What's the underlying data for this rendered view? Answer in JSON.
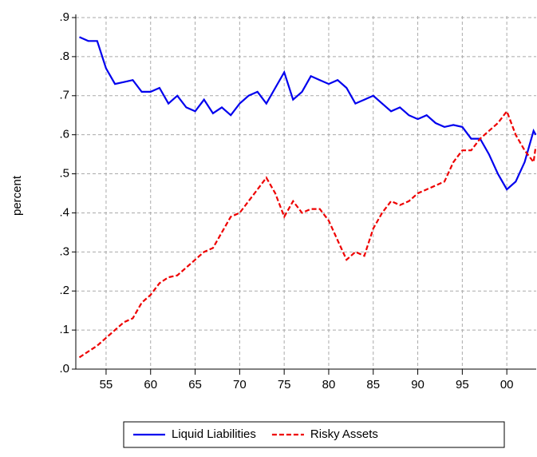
{
  "chart_data": {
    "type": "line",
    "y_label": "percent",
    "xlim": [
      1951.6,
      2003.3
    ],
    "xticks": [
      {
        "value": 1955,
        "label": "55"
      },
      {
        "value": 1960,
        "label": "60"
      },
      {
        "value": 1965,
        "label": "65"
      },
      {
        "value": 1970,
        "label": "70"
      },
      {
        "value": 1975,
        "label": "75"
      },
      {
        "value": 1980,
        "label": "80"
      },
      {
        "value": 1985,
        "label": "85"
      },
      {
        "value": 1990,
        "label": "90"
      },
      {
        "value": 1995,
        "label": "95"
      },
      {
        "value": 2000,
        "label": "00"
      }
    ],
    "ylim": [
      0,
      0.9
    ],
    "yticks": [
      {
        "value": 0,
        "label": ".0"
      },
      {
        "value": 0.1,
        "label": ".1"
      },
      {
        "value": 0.2,
        "label": ".2"
      },
      {
        "value": 0.3,
        "label": ".3"
      },
      {
        "value": 0.4,
        "label": ".4"
      },
      {
        "value": 0.5,
        "label": ".5"
      },
      {
        "value": 0.6,
        "label": ".6"
      },
      {
        "value": 0.7,
        "label": ".7"
      },
      {
        "value": 0.8,
        "label": ".8"
      },
      {
        "value": 0.9,
        "label": ".9"
      }
    ],
    "grid": true,
    "legend": "bottom",
    "x": [
      1952,
      1953,
      1954,
      1955,
      1956,
      1957,
      1958,
      1959,
      1960,
      1961,
      1962,
      1963,
      1964,
      1965,
      1966,
      1967,
      1968,
      1969,
      1970,
      1971,
      1972,
      1973,
      1974,
      1975,
      1976,
      1977,
      1978,
      1979,
      1980,
      1981,
      1982,
      1983,
      1984,
      1985,
      1986,
      1987,
      1988,
      1989,
      1990,
      1991,
      1992,
      1993,
      1994,
      1995,
      1996,
      1997,
      1998,
      1999,
      2000,
      2001,
      2002,
      2003,
      2003.25
    ],
    "series": [
      {
        "name": "Liquid Liabilities",
        "color": "#0000ee",
        "dash": "solid",
        "values": [
          0.85,
          0.84,
          0.84,
          0.77,
          0.73,
          0.735,
          0.74,
          0.71,
          0.71,
          0.72,
          0.68,
          0.7,
          0.67,
          0.66,
          0.69,
          0.655,
          0.67,
          0.65,
          0.68,
          0.7,
          0.71,
          0.68,
          0.72,
          0.76,
          0.69,
          0.71,
          0.75,
          0.74,
          0.73,
          0.74,
          0.72,
          0.68,
          0.69,
          0.7,
          0.68,
          0.66,
          0.67,
          0.65,
          0.64,
          0.65,
          0.63,
          0.62,
          0.625,
          0.62,
          0.59,
          0.59,
          0.55,
          0.5,
          0.46,
          0.48,
          0.53,
          0.61,
          0.6
        ]
      },
      {
        "name": "Risky Assets",
        "color": "#ee0000",
        "dash": "dashed",
        "values": [
          0.03,
          0.045,
          0.06,
          0.08,
          0.1,
          0.12,
          0.13,
          0.17,
          0.19,
          0.22,
          0.235,
          0.24,
          0.26,
          0.28,
          0.3,
          0.31,
          0.35,
          0.39,
          0.4,
          0.43,
          0.46,
          0.49,
          0.45,
          0.39,
          0.43,
          0.4,
          0.41,
          0.41,
          0.38,
          0.33,
          0.28,
          0.3,
          0.29,
          0.36,
          0.4,
          0.43,
          0.42,
          0.43,
          0.45,
          0.46,
          0.47,
          0.48,
          0.53,
          0.56,
          0.56,
          0.59,
          0.61,
          0.63,
          0.66,
          0.6,
          0.56,
          0.53,
          0.57
        ]
      }
    ]
  }
}
